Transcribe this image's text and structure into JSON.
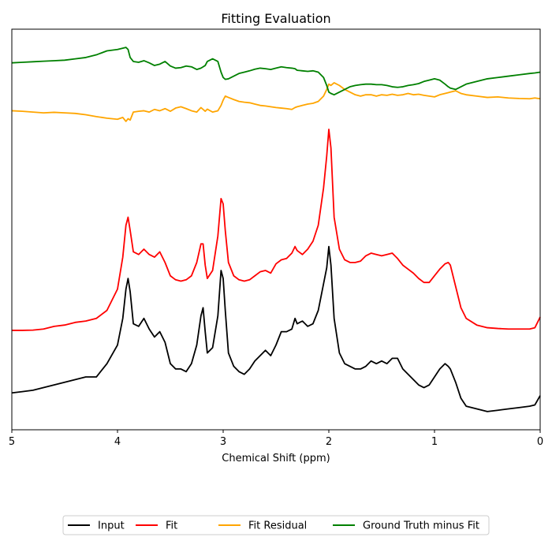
{
  "chart_data": {
    "type": "line",
    "title": "Fitting Evaluation",
    "xlabel": "Chemical Shift (ppm)",
    "ylabel": "",
    "xlim": [
      5,
      0
    ],
    "x_reversed": true,
    "xticks": [
      5,
      4,
      3,
      2,
      1,
      0
    ],
    "yticks_visible": false,
    "grid": false,
    "legend_position": "bottom-center",
    "x": [
      5.0,
      4.9,
      4.8,
      4.7,
      4.6,
      4.5,
      4.4,
      4.3,
      4.2,
      4.1,
      4.0,
      3.95,
      3.92,
      3.9,
      3.88,
      3.85,
      3.8,
      3.75,
      3.7,
      3.65,
      3.6,
      3.55,
      3.5,
      3.45,
      3.4,
      3.35,
      3.3,
      3.25,
      3.21,
      3.19,
      3.17,
      3.15,
      3.1,
      3.05,
      3.02,
      3.0,
      2.98,
      2.95,
      2.9,
      2.85,
      2.8,
      2.75,
      2.7,
      2.65,
      2.6,
      2.55,
      2.5,
      2.45,
      2.4,
      2.35,
      2.32,
      2.3,
      2.25,
      2.2,
      2.15,
      2.1,
      2.05,
      2.02,
      2.0,
      1.98,
      1.95,
      1.9,
      1.85,
      1.8,
      1.75,
      1.7,
      1.65,
      1.6,
      1.55,
      1.5,
      1.45,
      1.4,
      1.35,
      1.3,
      1.25,
      1.2,
      1.15,
      1.1,
      1.05,
      1.0,
      0.95,
      0.9,
      0.87,
      0.85,
      0.8,
      0.75,
      0.7,
      0.6,
      0.5,
      0.4,
      0.3,
      0.2,
      0.1,
      0.05,
      0.0
    ],
    "series": [
      {
        "name": "Input",
        "color": "#000000",
        "values": [
          -0.3,
          -0.25,
          -0.2,
          -0.1,
          0.0,
          0.1,
          0.2,
          0.3,
          0.3,
          0.8,
          1.5,
          2.5,
          3.6,
          4.0,
          3.5,
          2.3,
          2.2,
          2.5,
          2.1,
          1.8,
          2.0,
          1.6,
          0.8,
          0.6,
          0.6,
          0.5,
          0.8,
          1.5,
          2.6,
          2.9,
          2.0,
          1.2,
          1.4,
          2.6,
          4.3,
          4.0,
          2.8,
          1.2,
          0.7,
          0.5,
          0.4,
          0.6,
          0.9,
          1.1,
          1.3,
          1.1,
          1.5,
          2.0,
          2.0,
          2.1,
          2.5,
          2.3,
          2.4,
          2.2,
          2.3,
          2.8,
          3.8,
          4.4,
          5.2,
          4.5,
          2.5,
          1.2,
          0.8,
          0.7,
          0.6,
          0.6,
          0.7,
          0.9,
          0.8,
          0.9,
          0.8,
          1.0,
          1.0,
          0.6,
          0.4,
          0.2,
          0.0,
          -0.1,
          0.0,
          0.3,
          0.6,
          0.8,
          0.7,
          0.6,
          0.1,
          -0.5,
          -0.8,
          -0.9,
          -1.0,
          -0.95,
          -0.9,
          -0.85,
          -0.8,
          -0.75,
          -0.4
        ]
      },
      {
        "name": "Fit",
        "color": "#ff0000",
        "values": [
          2.05,
          2.05,
          2.06,
          2.1,
          2.2,
          2.25,
          2.35,
          2.4,
          2.5,
          2.8,
          3.6,
          4.8,
          6.0,
          6.3,
          5.8,
          5.0,
          4.9,
          5.1,
          4.9,
          4.8,
          5.0,
          4.6,
          4.1,
          3.95,
          3.9,
          3.95,
          4.1,
          4.6,
          5.3,
          5.3,
          4.5,
          4.0,
          4.3,
          5.6,
          7.0,
          6.8,
          5.8,
          4.6,
          4.1,
          3.95,
          3.9,
          3.95,
          4.1,
          4.25,
          4.3,
          4.2,
          4.55,
          4.7,
          4.75,
          4.95,
          5.2,
          5.05,
          4.9,
          5.1,
          5.4,
          6.0,
          7.4,
          8.6,
          9.6,
          8.9,
          6.3,
          5.1,
          4.7,
          4.6,
          4.6,
          4.65,
          4.85,
          4.95,
          4.9,
          4.85,
          4.9,
          4.95,
          4.75,
          4.5,
          4.35,
          4.2,
          4.0,
          3.85,
          3.85,
          4.1,
          4.35,
          4.55,
          4.6,
          4.5,
          3.7,
          2.9,
          2.5,
          2.25,
          2.15,
          2.12,
          2.1,
          2.1,
          2.1,
          2.15,
          2.55
        ]
      },
      {
        "name": "Fit Residual",
        "color": "#ffa500",
        "values": [
          10.3,
          10.28,
          10.25,
          10.22,
          10.24,
          10.22,
          10.2,
          10.15,
          10.08,
          10.02,
          9.98,
          10.05,
          9.9,
          10.0,
          9.95,
          10.25,
          10.28,
          10.3,
          10.25,
          10.35,
          10.3,
          10.38,
          10.28,
          10.4,
          10.45,
          10.38,
          10.3,
          10.25,
          10.42,
          10.35,
          10.28,
          10.36,
          10.25,
          10.3,
          10.5,
          10.7,
          10.85,
          10.8,
          10.72,
          10.65,
          10.62,
          10.6,
          10.55,
          10.5,
          10.48,
          10.45,
          10.42,
          10.4,
          10.38,
          10.35,
          10.42,
          10.45,
          10.5,
          10.55,
          10.58,
          10.65,
          10.85,
          11.1,
          11.3,
          11.25,
          11.35,
          11.25,
          11.1,
          11.0,
          10.9,
          10.85,
          10.9,
          10.9,
          10.85,
          10.9,
          10.88,
          10.92,
          10.88,
          10.9,
          10.95,
          10.9,
          10.92,
          10.88,
          10.85,
          10.82,
          10.9,
          10.95,
          10.98,
          11.0,
          11.05,
          10.95,
          10.9,
          10.85,
          10.8,
          10.82,
          10.78,
          10.76,
          10.75,
          10.78,
          10.75
        ]
      },
      {
        "name": "Ground Truth minus Fit",
        "color": "#008000",
        "values": [
          12.1,
          12.12,
          12.14,
          12.16,
          12.18,
          12.2,
          12.25,
          12.3,
          12.4,
          12.55,
          12.6,
          12.65,
          12.68,
          12.6,
          12.3,
          12.15,
          12.12,
          12.18,
          12.1,
          12.0,
          12.05,
          12.15,
          11.98,
          11.9,
          11.92,
          11.98,
          11.95,
          11.85,
          11.9,
          11.95,
          12.0,
          12.15,
          12.25,
          12.15,
          11.75,
          11.55,
          11.48,
          11.5,
          11.6,
          11.7,
          11.75,
          11.8,
          11.86,
          11.9,
          11.88,
          11.85,
          11.9,
          11.95,
          11.92,
          11.9,
          11.88,
          11.82,
          11.8,
          11.78,
          11.8,
          11.75,
          11.55,
          11.25,
          11.0,
          10.95,
          10.9,
          11.0,
          11.1,
          11.2,
          11.25,
          11.28,
          11.3,
          11.3,
          11.28,
          11.28,
          11.25,
          11.2,
          11.18,
          11.2,
          11.25,
          11.28,
          11.32,
          11.4,
          11.45,
          11.5,
          11.45,
          11.3,
          11.2,
          11.15,
          11.1,
          11.2,
          11.3,
          11.4,
          11.5,
          11.55,
          11.6,
          11.65,
          11.7,
          11.72,
          11.75
        ]
      }
    ]
  }
}
